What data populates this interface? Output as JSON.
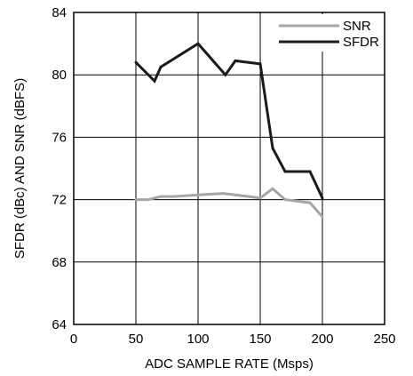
{
  "chart_data": {
    "type": "line",
    "xlabel": "ADC SAMPLE RATE (Msps)",
    "ylabel": "SFDR (dBc) AND SNR (dBFS)",
    "xlim": [
      0,
      250
    ],
    "ylim": [
      64,
      84
    ],
    "xticks": [
      0,
      50,
      100,
      150,
      200,
      250
    ],
    "yticks": [
      64,
      68,
      72,
      76,
      80,
      84
    ],
    "grid": true,
    "legend_position": "top-right",
    "series": [
      {
        "name": "SNR",
        "color": "#a6a6a6",
        "x": [
          50,
          60,
          70,
          80,
          100,
          120,
          130,
          150,
          160,
          170,
          190,
          200
        ],
        "y": [
          72.0,
          72.0,
          72.2,
          72.2,
          72.3,
          72.4,
          72.3,
          72.1,
          72.7,
          72.0,
          71.8,
          70.9
        ]
      },
      {
        "name": "SFDR",
        "color": "#1a1a1a",
        "x": [
          50,
          65,
          70,
          100,
          122,
          130,
          150,
          160,
          170,
          190,
          200
        ],
        "y": [
          80.8,
          79.6,
          80.5,
          82.0,
          80.0,
          80.9,
          80.7,
          75.3,
          73.8,
          73.8,
          72.1
        ]
      }
    ]
  }
}
